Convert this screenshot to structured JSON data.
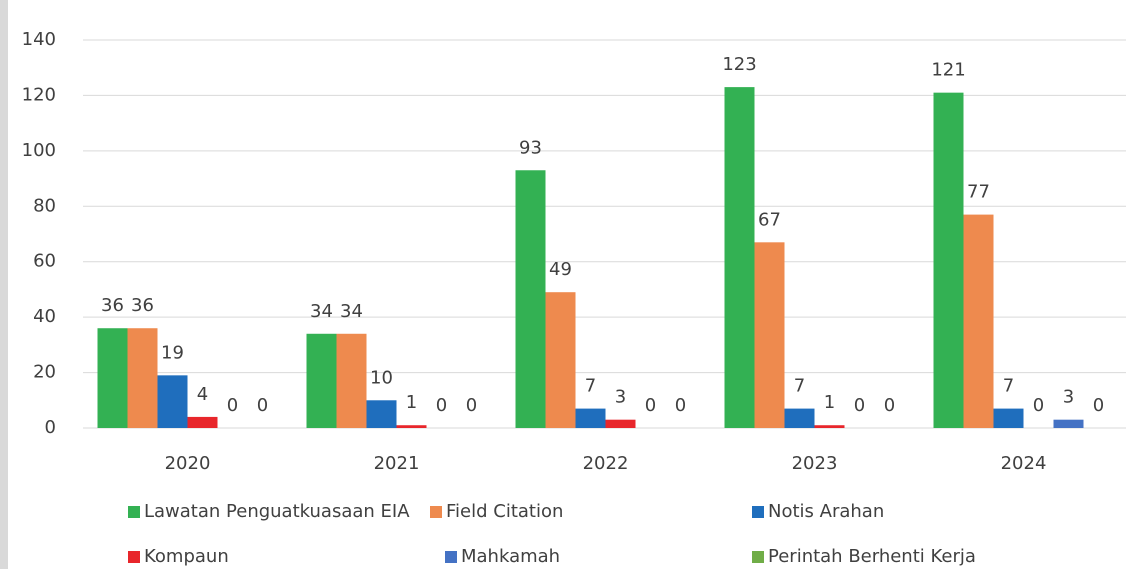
{
  "chart_data": {
    "type": "bar",
    "categories": [
      "2020",
      "2021",
      "2022",
      "2023",
      "2024"
    ],
    "series": [
      {
        "name": "Lawatan Penguatkuasaan EIA",
        "color": "#33b153",
        "values": [
          36,
          34,
          93,
          123,
          121
        ]
      },
      {
        "name": "Field Citation",
        "color": "#ee8a4e",
        "values": [
          36,
          34,
          49,
          67,
          77
        ]
      },
      {
        "name": "Notis Arahan",
        "color": "#1f6ebd",
        "values": [
          19,
          10,
          7,
          7,
          7
        ]
      },
      {
        "name": "Kompaun",
        "color": "#e8262b",
        "values": [
          4,
          1,
          3,
          1,
          0
        ]
      },
      {
        "name": "Mahkamah",
        "color": "#4472c4",
        "values": [
          0,
          0,
          0,
          0,
          3
        ]
      },
      {
        "name": "Perintah Berhenti Kerja",
        "color": "#70ad47",
        "values": [
          0,
          0,
          0,
          0,
          0
        ]
      }
    ],
    "ylim": [
      0,
      140
    ],
    "yticks": [
      0,
      20,
      40,
      60,
      80,
      100,
      120,
      140
    ],
    "grid": true,
    "legend": "bottom"
  }
}
